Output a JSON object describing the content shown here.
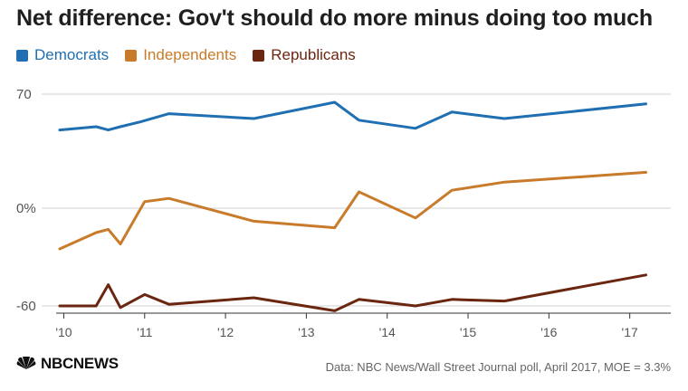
{
  "title": "Net difference: Gov't should do more minus doing too much",
  "source": "Data: NBC News/Wall Street Journal poll, April 2017, MOE = 3.3%",
  "logo_text": "NBCNEWS",
  "chart_data": {
    "type": "line",
    "title": "Net difference: Gov't should do more minus doing too much",
    "ylim": [
      -60,
      70
    ],
    "yticks": [
      {
        "value": 70,
        "label": "70"
      },
      {
        "value": 0,
        "label": "0%"
      },
      {
        "value": -60,
        "label": "-60"
      }
    ],
    "xlim": [
      2009.95,
      2017.25
    ],
    "xticks": [
      {
        "value": 2010,
        "label": "'10"
      },
      {
        "value": 2011,
        "label": "'11"
      },
      {
        "value": 2012,
        "label": "'12"
      },
      {
        "value": 2013,
        "label": "'13"
      },
      {
        "value": 2014,
        "label": "'14"
      },
      {
        "value": 2015,
        "label": "'15"
      },
      {
        "value": 2016,
        "label": "'16"
      },
      {
        "value": 2017,
        "label": "'17"
      }
    ],
    "legend_position": "top-left",
    "grid": "horizontal",
    "series": [
      {
        "name": "Democrats",
        "color": "#1f6fb2",
        "points": [
          [
            2009.95,
            48
          ],
          [
            2010.4,
            50
          ],
          [
            2010.55,
            48
          ],
          [
            2010.7,
            50
          ],
          [
            2010.95,
            53
          ],
          [
            2011.3,
            58
          ],
          [
            2012.35,
            55
          ],
          [
            2013.35,
            65
          ],
          [
            2013.65,
            54
          ],
          [
            2014.35,
            49
          ],
          [
            2014.8,
            59
          ],
          [
            2015.45,
            55
          ],
          [
            2017.2,
            64
          ]
        ]
      },
      {
        "name": "Independents",
        "color": "#c87b2a",
        "points": [
          [
            2009.95,
            -25
          ],
          [
            2010.4,
            -15
          ],
          [
            2010.55,
            -13
          ],
          [
            2010.7,
            -22
          ],
          [
            2011.0,
            4
          ],
          [
            2011.3,
            6
          ],
          [
            2012.35,
            -8
          ],
          [
            2013.35,
            -12
          ],
          [
            2013.65,
            10
          ],
          [
            2014.35,
            -6
          ],
          [
            2014.8,
            11
          ],
          [
            2015.45,
            16
          ],
          [
            2017.2,
            22
          ]
        ]
      },
      {
        "name": "Republicans",
        "color": "#6b2610",
        "points": [
          [
            2009.95,
            -60
          ],
          [
            2010.4,
            -60
          ],
          [
            2010.55,
            -47
          ],
          [
            2010.7,
            -61
          ],
          [
            2011.0,
            -53
          ],
          [
            2011.3,
            -59
          ],
          [
            2012.35,
            -55
          ],
          [
            2013.35,
            -63
          ],
          [
            2013.65,
            -56
          ],
          [
            2014.35,
            -60
          ],
          [
            2014.8,
            -56
          ],
          [
            2015.45,
            -57
          ],
          [
            2017.2,
            -41
          ]
        ]
      }
    ]
  }
}
